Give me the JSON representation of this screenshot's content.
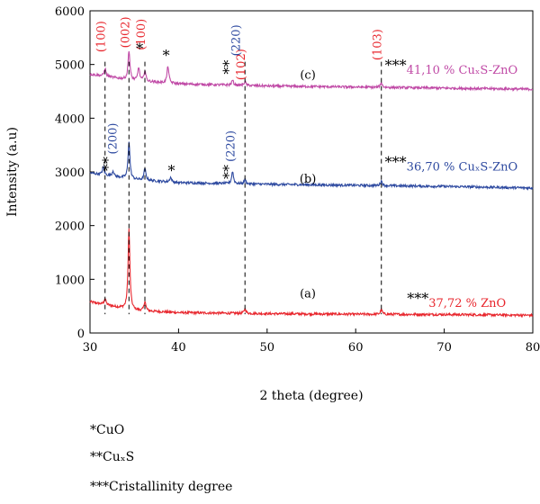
{
  "chart_data": {
    "type": "line",
    "xlabel": "2 theta (degree)",
    "ylabel": "Intensity (a.u)",
    "xlim": [
      30,
      80
    ],
    "ylim": [
      0,
      6000
    ],
    "x_ticks": [
      30,
      40,
      50,
      60,
      70,
      80
    ],
    "y_ticks": [
      0,
      1000,
      2000,
      3000,
      4000,
      5000,
      6000
    ],
    "series": [
      {
        "curve_label": "(a)",
        "color": "#e8262d",
        "baseline": [
          [
            30,
            580
          ],
          [
            35,
            420
          ],
          [
            40,
            380
          ],
          [
            50,
            360
          ],
          [
            60,
            350
          ],
          [
            70,
            345
          ],
          [
            80,
            330
          ]
        ],
        "peaks": [
          [
            31.7,
            120
          ],
          [
            34.4,
            1500
          ],
          [
            36.2,
            180
          ],
          [
            47.5,
            90
          ],
          [
            62.9,
            90
          ]
        ],
        "annotation": {
          "stars": "***",
          "text": "37,72 % ZnO",
          "color": "#e8262d"
        }
      },
      {
        "curve_label": "(b)",
        "color": "#2e4aa0",
        "baseline": [
          [
            30,
            2980
          ],
          [
            35,
            2860
          ],
          [
            40,
            2800
          ],
          [
            50,
            2770
          ],
          [
            60,
            2750
          ],
          [
            70,
            2730
          ],
          [
            80,
            2700
          ]
        ],
        "peaks": [
          [
            31.5,
            150
          ],
          [
            32.6,
            100
          ],
          [
            34.4,
            700
          ],
          [
            36.2,
            220
          ],
          [
            39.1,
            90
          ],
          [
            46.1,
            230
          ],
          [
            47.5,
            80
          ],
          [
            62.9,
            90
          ]
        ],
        "annotation": {
          "stars": "***",
          "text": "36,70 % CuₓS-ZnO",
          "color": "#2e4aa0"
        }
      },
      {
        "curve_label": "(c)",
        "color": "#c04aa6",
        "baseline": [
          [
            30,
            4820
          ],
          [
            35,
            4700
          ],
          [
            40,
            4640
          ],
          [
            50,
            4600
          ],
          [
            60,
            4580
          ],
          [
            70,
            4560
          ],
          [
            80,
            4540
          ]
        ],
        "peaks": [
          [
            31.7,
            150
          ],
          [
            34.4,
            550
          ],
          [
            35.5,
            250
          ],
          [
            36.2,
            200
          ],
          [
            38.8,
            320
          ],
          [
            46.1,
            90
          ],
          [
            47.5,
            70
          ],
          [
            62.9,
            90
          ]
        ],
        "annotation": {
          "stars": "***",
          "text": "41,10 % CuₓS-ZnO",
          "color": "#c04aa6"
        }
      }
    ],
    "dashed_lines_x": [
      31.7,
      34.4,
      36.2,
      47.5,
      62.9
    ],
    "annotations": [
      {
        "text": "(100)",
        "x": 31.7,
        "y": 5520,
        "color": "#e8262d",
        "rotate": true
      },
      {
        "text": "(002)",
        "x": 34.4,
        "y": 5600,
        "color": "#e8262d",
        "rotate": true
      },
      {
        "text": "(100)",
        "x": 36.2,
        "y": 5560,
        "color": "#e8262d",
        "rotate": true
      },
      {
        "text": "(102)",
        "x": 47.5,
        "y": 5000,
        "color": "#e8262d",
        "rotate": true
      },
      {
        "text": "(103)",
        "x": 62.9,
        "y": 5370,
        "color": "#e8262d",
        "rotate": true
      },
      {
        "text": "(220)",
        "x": 46.9,
        "y": 5450,
        "color": "#2e4aa0",
        "rotate": true
      },
      {
        "text": "(200)",
        "x": 33.0,
        "y": 3620,
        "color": "#2e4aa0",
        "rotate": true
      },
      {
        "text": "(220)",
        "x": 46.3,
        "y": 3480,
        "color": "#2e4aa0",
        "rotate": true
      },
      {
        "text": "*",
        "x": 35.6,
        "y": 5200,
        "color": "#000000"
      },
      {
        "text": "*",
        "x": 38.6,
        "y": 5080,
        "color": "#000000"
      },
      {
        "text": "**",
        "x": 46.2,
        "y": 4950,
        "color": "#000000",
        "rotate": true
      },
      {
        "text": "**",
        "x": 32.6,
        "y": 3150,
        "color": "#000000",
        "rotate": true
      },
      {
        "text": "*",
        "x": 39.2,
        "y": 2930,
        "color": "#000000"
      },
      {
        "text": "**",
        "x": 46.2,
        "y": 3000,
        "color": "#000000",
        "rotate": true
      }
    ]
  },
  "legend_notes": [
    {
      "stars": "*",
      "text": "CuO"
    },
    {
      "stars": "**",
      "text": "CuₓS"
    },
    {
      "stars": "***",
      "text": "Cristallinity degree"
    }
  ]
}
